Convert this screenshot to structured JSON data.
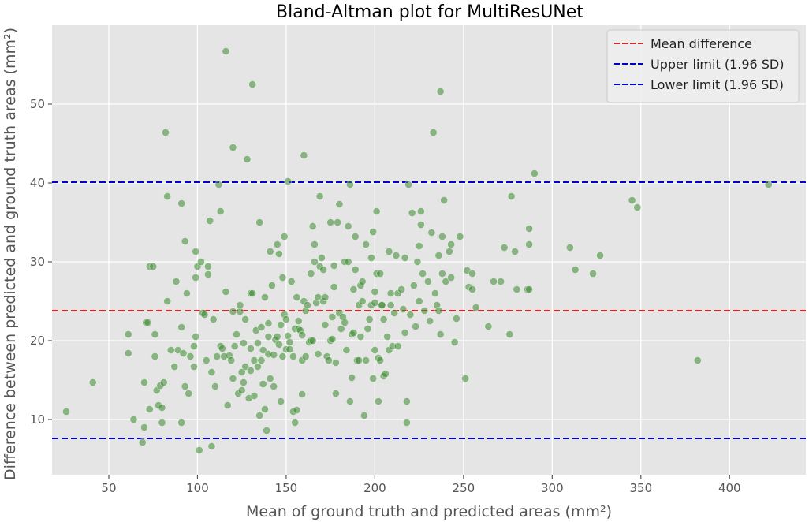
{
  "chart_data": {
    "type": "scatter",
    "title": "Bland-Altman plot for MultiResUNet",
    "xlabel": "Mean of ground truth and predicted areas (mm²)",
    "ylabel": "Difference between predicted and ground truth areas (mm²)",
    "xlim": [
      18,
      443
    ],
    "ylim": [
      3,
      60
    ],
    "xticks": [
      50,
      100,
      150,
      200,
      250,
      300,
      350,
      400
    ],
    "yticks": [
      10,
      20,
      30,
      40,
      50
    ],
    "grid": true,
    "legend_position": "top-right",
    "reference_lines": [
      {
        "name": "Mean difference",
        "y": 23.8,
        "color": "#d62728",
        "style": "dashed"
      },
      {
        "name": "Upper limit (1.96 SD)",
        "y": 40.1,
        "color": "#0000cc",
        "style": "dashed"
      },
      {
        "name": "Lower limit (1.96 SD)",
        "y": 7.6,
        "color": "#0000cc",
        "style": "dashed"
      }
    ],
    "point_color": "#3a8a2e",
    "points": [
      [
        26,
        11
      ],
      [
        41,
        14.7
      ],
      [
        61,
        20.8
      ],
      [
        61,
        18.4
      ],
      [
        64,
        10
      ],
      [
        69,
        7.1
      ],
      [
        70,
        9
      ],
      [
        70,
        14.7
      ],
      [
        71,
        22.3
      ],
      [
        72,
        22.3
      ],
      [
        73,
        11.3
      ],
      [
        73,
        29.4
      ],
      [
        75,
        29.4
      ],
      [
        76,
        18
      ],
      [
        76,
        20.8
      ],
      [
        77,
        13.7
      ],
      [
        78,
        11.8
      ],
      [
        79,
        14.3
      ],
      [
        80,
        9.6
      ],
      [
        80,
        11.5
      ],
      [
        81,
        14.7
      ],
      [
        82,
        46.4
      ],
      [
        83,
        38.3
      ],
      [
        83,
        25
      ],
      [
        85,
        18.8
      ],
      [
        87,
        16.7
      ],
      [
        88,
        27.5
      ],
      [
        89,
        18.8
      ],
      [
        91,
        37.4
      ],
      [
        91,
        21.7
      ],
      [
        91,
        9.6
      ],
      [
        92,
        18.4
      ],
      [
        93,
        14.2
      ],
      [
        93,
        32.6
      ],
      [
        94,
        26
      ],
      [
        95,
        13.3
      ],
      [
        96,
        18
      ],
      [
        98,
        16.7
      ],
      [
        98,
        19.3
      ],
      [
        99,
        31.3
      ],
      [
        99,
        28
      ],
      [
        99,
        20.5
      ],
      [
        100,
        29.4
      ],
      [
        101,
        6.1
      ],
      [
        102,
        30
      ],
      [
        103,
        23.5
      ],
      [
        104,
        23.3
      ],
      [
        105,
        17.5
      ],
      [
        106,
        28.4
      ],
      [
        106,
        29.4
      ],
      [
        107,
        35.2
      ],
      [
        108,
        6.6
      ],
      [
        108,
        16
      ],
      [
        109,
        22.7
      ],
      [
        110,
        14.2
      ],
      [
        111,
        18
      ],
      [
        112,
        39.8
      ],
      [
        113,
        36.4
      ],
      [
        113,
        19.3
      ],
      [
        114,
        19
      ],
      [
        115,
        18
      ],
      [
        116,
        56.7
      ],
      [
        116,
        26.2
      ],
      [
        117,
        11.8
      ],
      [
        118,
        18.1
      ],
      [
        119,
        17.5
      ],
      [
        120,
        23.7
      ],
      [
        120,
        44.5
      ],
      [
        120,
        15.2
      ],
      [
        121,
        19.3
      ],
      [
        122,
        20.8
      ],
      [
        123,
        13.3
      ],
      [
        124,
        23.7
      ],
      [
        124,
        24.5
      ],
      [
        125,
        13.7
      ],
      [
        125,
        16
      ],
      [
        126,
        14.7
      ],
      [
        126,
        19.7
      ],
      [
        127,
        22.7
      ],
      [
        127,
        16.7
      ],
      [
        128,
        43
      ],
      [
        129,
        12.7
      ],
      [
        130,
        16.2
      ],
      [
        130,
        19
      ],
      [
        130,
        26
      ],
      [
        131,
        52.5
      ],
      [
        131,
        26
      ],
      [
        132,
        13
      ],
      [
        132,
        17.5
      ],
      [
        133,
        21.3
      ],
      [
        134,
        19.7
      ],
      [
        134,
        16.7
      ],
      [
        135,
        35
      ],
      [
        135,
        10.5
      ],
      [
        136,
        21.7
      ],
      [
        136,
        17.5
      ],
      [
        137,
        18.8
      ],
      [
        137,
        14.5
      ],
      [
        138,
        25.5
      ],
      [
        138,
        11.3
      ],
      [
        139,
        8.6
      ],
      [
        140,
        18.3
      ],
      [
        140,
        22.2
      ],
      [
        140,
        20.5
      ],
      [
        141,
        31.3
      ],
      [
        141,
        15.2
      ],
      [
        142,
        27
      ],
      [
        143,
        18.2
      ],
      [
        143,
        14.2
      ],
      [
        144,
        20.1
      ],
      [
        145,
        32.2
      ],
      [
        145,
        20.5
      ],
      [
        146,
        31
      ],
      [
        146,
        19.5
      ],
      [
        147,
        12.3
      ],
      [
        147,
        22
      ],
      [
        148,
        18
      ],
      [
        148,
        28
      ],
      [
        149,
        23.3
      ],
      [
        149,
        33.2
      ],
      [
        150,
        18.9
      ],
      [
        150,
        22.7
      ],
      [
        151,
        40.2
      ],
      [
        151,
        20.6
      ],
      [
        152,
        18.9
      ],
      [
        152,
        19.8
      ],
      [
        153,
        27.5
      ],
      [
        154,
        11
      ],
      [
        154,
        18
      ],
      [
        155,
        21.5
      ],
      [
        155,
        9.6
      ],
      [
        156,
        11.2
      ],
      [
        156,
        25.5
      ],
      [
        157,
        21.5
      ],
      [
        157,
        22.5
      ],
      [
        158,
        21.3
      ],
      [
        159,
        20.7
      ],
      [
        159,
        13.2
      ],
      [
        159,
        17.5
      ],
      [
        160,
        43.5
      ],
      [
        160,
        25
      ],
      [
        161,
        18
      ],
      [
        161,
        23.8
      ],
      [
        162,
        24.5
      ],
      [
        163,
        19.8
      ],
      [
        164,
        20
      ],
      [
        164,
        28.5
      ],
      [
        165,
        20
      ],
      [
        165,
        34.5
      ],
      [
        166,
        30
      ],
      [
        166,
        32.2
      ],
      [
        167,
        24.8
      ],
      [
        168,
        18.3
      ],
      [
        168,
        25.5
      ],
      [
        169,
        29.4
      ],
      [
        169,
        38.3
      ],
      [
        170,
        30.5
      ],
      [
        171,
        29
      ],
      [
        171,
        25
      ],
      [
        172,
        25.5
      ],
      [
        172,
        22
      ],
      [
        173,
        18
      ],
      [
        174,
        17.5
      ],
      [
        175,
        20
      ],
      [
        175,
        35
      ],
      [
        176,
        20.2
      ],
      [
        176,
        23
      ],
      [
        177,
        26.8
      ],
      [
        177,
        29.5
      ],
      [
        178,
        17.2
      ],
      [
        178,
        13.3
      ],
      [
        179,
        35
      ],
      [
        180,
        37.3
      ],
      [
        180,
        23.5
      ],
      [
        181,
        21.5
      ],
      [
        182,
        23
      ],
      [
        183,
        30
      ],
      [
        183,
        22.3
      ],
      [
        184,
        18.8
      ],
      [
        185,
        34.5
      ],
      [
        185,
        30
      ],
      [
        186,
        39.8
      ],
      [
        186,
        12.3
      ],
      [
        187,
        15.3
      ],
      [
        187,
        20.8
      ],
      [
        188,
        21
      ],
      [
        188,
        26.5
      ],
      [
        189,
        29
      ],
      [
        189,
        33.2
      ],
      [
        190,
        17.5
      ],
      [
        191,
        17.5
      ],
      [
        191,
        24.5
      ],
      [
        192,
        27
      ],
      [
        192,
        20.5
      ],
      [
        193,
        27.5
      ],
      [
        193,
        25
      ],
      [
        194,
        10.5
      ],
      [
        195,
        17.5
      ],
      [
        195,
        32.2
      ],
      [
        196,
        21.5
      ],
      [
        197,
        22.7
      ],
      [
        198,
        24.5
      ],
      [
        198,
        30.5
      ],
      [
        199,
        33.8
      ],
      [
        199,
        15.2
      ],
      [
        200,
        18.8
      ],
      [
        200,
        26.2
      ],
      [
        200,
        24.8
      ],
      [
        201,
        28.5
      ],
      [
        201,
        36.4
      ],
      [
        202,
        12.3
      ],
      [
        202,
        17.8
      ],
      [
        203,
        17.5
      ],
      [
        203,
        28.5
      ],
      [
        204,
        24.5
      ],
      [
        204,
        24.5
      ],
      [
        205,
        15.5
      ],
      [
        205,
        22.7
      ],
      [
        206,
        15.8
      ],
      [
        207,
        20.5
      ],
      [
        208,
        31.3
      ],
      [
        208,
        18.8
      ],
      [
        209,
        26
      ],
      [
        209,
        24.5
      ],
      [
        210,
        19.3
      ],
      [
        211,
        23.5
      ],
      [
        212,
        30.8
      ],
      [
        213,
        19.3
      ],
      [
        213,
        26
      ],
      [
        215,
        26.5
      ],
      [
        216,
        24
      ],
      [
        217,
        21
      ],
      [
        217,
        30.5
      ],
      [
        218,
        12.3
      ],
      [
        218,
        9.6
      ],
      [
        219,
        39.8
      ],
      [
        220,
        23.3
      ],
      [
        221,
        36.2
      ],
      [
        222,
        27
      ],
      [
        223,
        21.8
      ],
      [
        224,
        30
      ],
      [
        225,
        25
      ],
      [
        225,
        32
      ],
      [
        226,
        34.7
      ],
      [
        226,
        36.4
      ],
      [
        227,
        28.5
      ],
      [
        228,
        23.8
      ],
      [
        230,
        27.5
      ],
      [
        231,
        22.5
      ],
      [
        232,
        33.7
      ],
      [
        233,
        46.4
      ],
      [
        234,
        26
      ],
      [
        235,
        24.5
      ],
      [
        236,
        30.8
      ],
      [
        236,
        23.8
      ],
      [
        237,
        51.6
      ],
      [
        237,
        20.8
      ],
      [
        238,
        33.2
      ],
      [
        238,
        28.5
      ],
      [
        239,
        37.8
      ],
      [
        240,
        27.5
      ],
      [
        242,
        31.3
      ],
      [
        243,
        28
      ],
      [
        243,
        32.2
      ],
      [
        245,
        19.8
      ],
      [
        246,
        22.8
      ],
      [
        248,
        33.2
      ],
      [
        251,
        15.2
      ],
      [
        252,
        28.9
      ],
      [
        253,
        26.8
      ],
      [
        255,
        28.5
      ],
      [
        255,
        26.5
      ],
      [
        257,
        24.2
      ],
      [
        264,
        21.8
      ],
      [
        267,
        27.5
      ],
      [
        271,
        27.5
      ],
      [
        273,
        31.8
      ],
      [
        276,
        20.8
      ],
      [
        277,
        38.3
      ],
      [
        279,
        31.3
      ],
      [
        280,
        26.5
      ],
      [
        286,
        26.5
      ],
      [
        287,
        26.5
      ],
      [
        287,
        34.2
      ],
      [
        287,
        32.2
      ],
      [
        290,
        41.2
      ],
      [
        310,
        31.8
      ],
      [
        313,
        29
      ],
      [
        323,
        28.5
      ],
      [
        327,
        30.8
      ],
      [
        345,
        37.8
      ],
      [
        348,
        36.9
      ],
      [
        382,
        17.5
      ],
      [
        422,
        39.8
      ]
    ]
  }
}
